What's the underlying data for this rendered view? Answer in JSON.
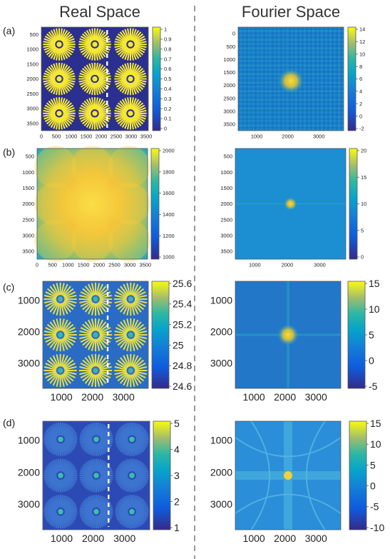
{
  "headers": {
    "left": "Real Space",
    "right": "Fourier Space"
  },
  "colors": {
    "low": "#352a87",
    "mid": "#20b2aa",
    "high": "#f9fb0e",
    "divider": "#9a9a9a"
  },
  "panels": [
    {
      "label": "(a)",
      "real": {
        "yticks": [
          "500",
          "1000",
          "1500",
          "2000",
          "2500",
          "3000",
          "3500"
        ],
        "xticks": [
          "0",
          "500",
          "1000",
          "1500",
          "2000",
          "2500",
          "3000",
          "3500"
        ],
        "cbar": [
          "1",
          "0.9",
          "0.8",
          "0.7",
          "0.6",
          "0.5",
          "0.4",
          "0.3",
          "0.2",
          "0.1",
          "0"
        ]
      },
      "fourier": {
        "yticks": [
          "0",
          "500",
          "1000",
          "1500",
          "2000",
          "2500",
          "3000",
          "3500"
        ],
        "xticks": [
          "1000",
          "2000",
          "3000"
        ],
        "cbar": [
          "14",
          "12",
          "10",
          "8",
          "6",
          "4",
          "2",
          "0",
          "-2"
        ]
      }
    },
    {
      "label": "(b)",
      "real": {
        "yticks": [
          "500",
          "1000",
          "1500",
          "2000",
          "2500",
          "3000",
          "3500"
        ],
        "xticks": [
          "0",
          "500",
          "1000",
          "1500",
          "2000",
          "2500",
          "3000",
          "3500"
        ],
        "cbar": [
          "2000",
          "1800",
          "1600",
          "1400",
          "1200",
          "1000"
        ]
      },
      "fourier": {
        "yticks": [
          "500",
          "1000",
          "1500",
          "2000",
          "2500",
          "3000",
          "3500"
        ],
        "xticks": [
          "1000",
          "2000",
          "3000"
        ],
        "cbar": [
          "20",
          "15",
          "10",
          "5",
          "0"
        ]
      }
    },
    {
      "label": "(c)",
      "real": {
        "yticks": [
          "1000",
          "2000",
          "3000"
        ],
        "xticks": [
          "1000",
          "2000",
          "3000"
        ],
        "cbar": [
          "25.6",
          "25.4",
          "25.2",
          "25",
          "24.8",
          "24.6"
        ]
      },
      "fourier": {
        "yticks": [
          "1000",
          "2000",
          "3000"
        ],
        "xticks": [
          "1000",
          "2000",
          "3000"
        ],
        "cbar": [
          "15",
          "10",
          "5",
          "0",
          "-5"
        ]
      }
    },
    {
      "label": "(d)",
      "real": {
        "yticks": [
          "1000",
          "2000",
          "3000"
        ],
        "xticks": [
          "1000",
          "2000",
          "3000"
        ],
        "cbar": [
          "5",
          "4",
          "3",
          "2",
          "1"
        ]
      },
      "fourier": {
        "yticks": [
          "1000",
          "2000",
          "3000"
        ],
        "xticks": [
          "1000",
          "2000",
          "3000"
        ],
        "cbar": [
          "15",
          "10",
          "5",
          "0",
          "-5",
          "-10"
        ]
      }
    }
  ]
}
